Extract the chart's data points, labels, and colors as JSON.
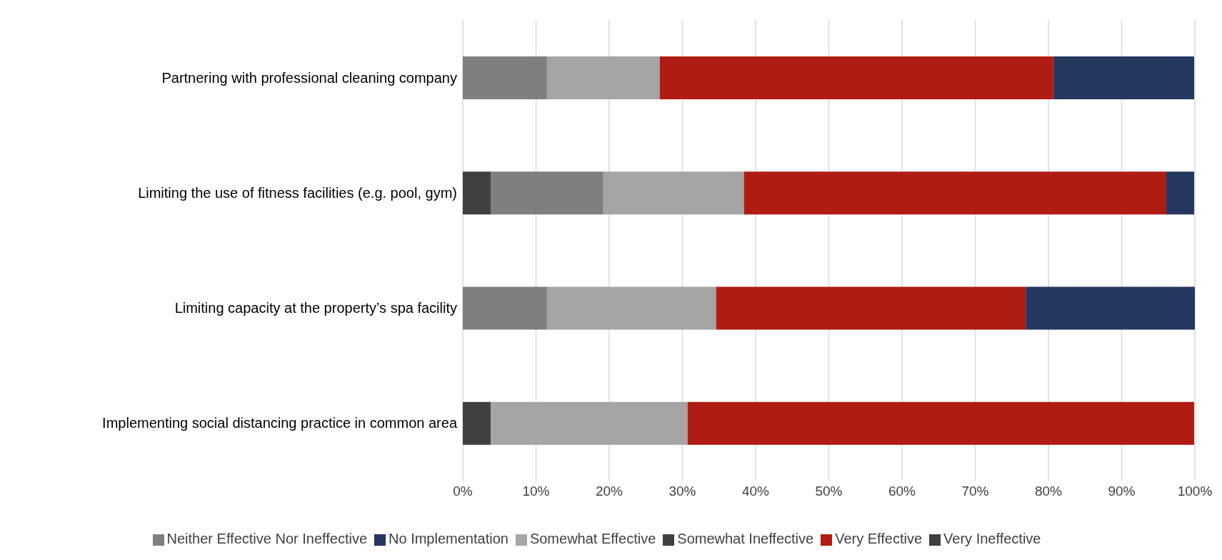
{
  "chart_data": {
    "type": "bar",
    "orientation": "horizontal",
    "stacked": true,
    "categories": [
      "Partnering with professional cleaning company",
      "Limiting the use of fitness facilities (e.g. pool, gym)",
      "Limiting capacity at the property’s spa facility",
      "Implementing social distancing practice in common area"
    ],
    "series": [
      {
        "name": "Very Ineffective",
        "color": "#404040",
        "values": [
          null,
          null,
          null,
          null
        ]
      },
      {
        "name": "Somewhat Ineffective",
        "color": "#404040",
        "values": [
          null,
          3.8,
          null,
          3.8
        ]
      },
      {
        "name": "Neither Effective Nor Ineffective",
        "color": "#7f7f7f",
        "values": [
          11.5,
          15.4,
          11.5,
          null
        ]
      },
      {
        "name": "Somewhat Effective",
        "color": "#a5a5a5",
        "values": [
          15.4,
          19.2,
          23.1,
          26.9
        ]
      },
      {
        "name": "Very Effective",
        "color": "#b01c13",
        "values": [
          53.8,
          57.7,
          42.3,
          69.2
        ]
      },
      {
        "name": "No Implementation",
        "color": "#243760",
        "values": [
          19.2,
          3.8,
          23.1,
          null
        ]
      }
    ],
    "xlim": [
      0,
      100
    ],
    "xticks": [
      {
        "value": 0,
        "label": "0%"
      },
      {
        "value": 10,
        "label": "10%"
      },
      {
        "value": 20,
        "label": "20%"
      },
      {
        "value": 30,
        "label": "30%"
      },
      {
        "value": 40,
        "label": "40%"
      },
      {
        "value": 50,
        "label": "50%"
      },
      {
        "value": 60,
        "label": "60%"
      },
      {
        "value": 70,
        "label": "70%"
      },
      {
        "value": 80,
        "label": "80%"
      },
      {
        "value": 90,
        "label": "90%"
      },
      {
        "value": 100,
        "label": "100%"
      }
    ],
    "grid": "x",
    "legend": "bottom"
  }
}
